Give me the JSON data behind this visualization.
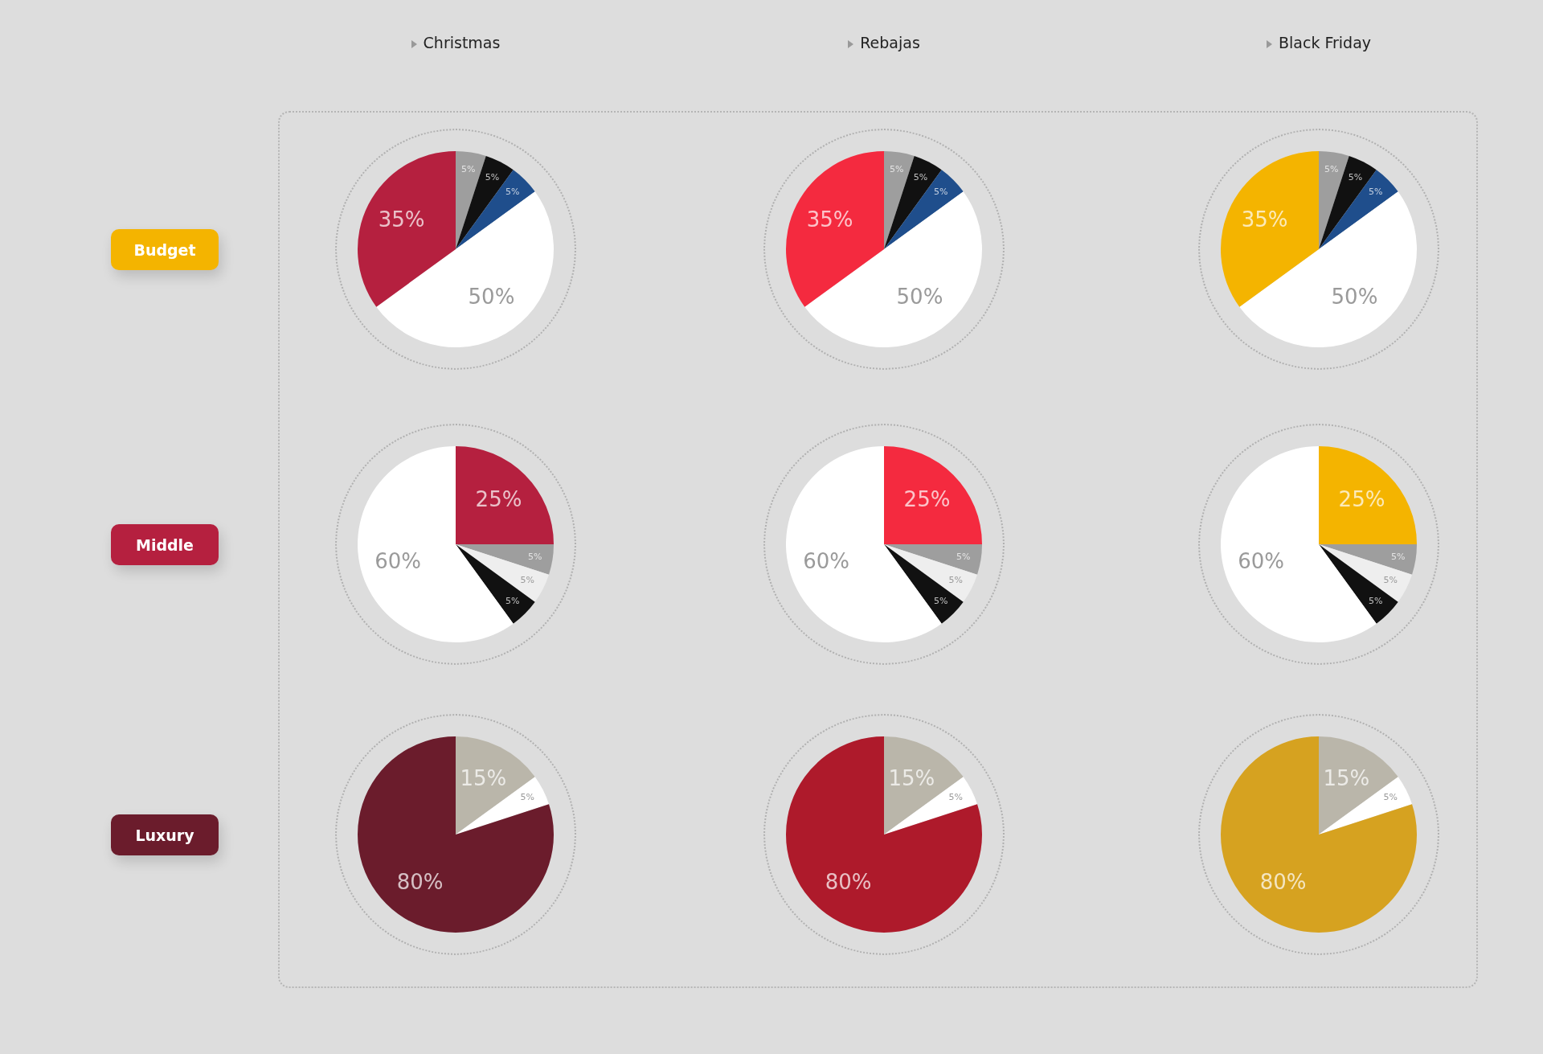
{
  "chart_data": [
    {
      "type": "pie",
      "title": "Christmas",
      "ylabel": "Budget",
      "categories": [
        null,
        null,
        null,
        null,
        null
      ],
      "values": [
        5,
        5,
        5,
        50,
        35
      ],
      "colors": [
        "#9e9e9e",
        "#111111",
        "#1f4e8c",
        "#ffffff",
        "#b5203f"
      ],
      "value_labels": [
        "5%",
        "5%",
        "5%",
        "50%",
        "35%"
      ]
    },
    {
      "type": "pie",
      "title": "Rebajas",
      "categories": [
        null,
        null,
        null,
        null,
        null
      ],
      "values": [
        5,
        5,
        5,
        50,
        35
      ],
      "colors": [
        "#9e9e9e",
        "#111111",
        "#1f4e8c",
        "#ffffff",
        "#f42a3f"
      ],
      "value_labels": [
        "5%",
        "5%",
        "5%",
        "50%",
        "35%"
      ]
    },
    {
      "type": "pie",
      "title": "Black Friday",
      "categories": [
        null,
        null,
        null,
        null,
        null
      ],
      "values": [
        5,
        5,
        5,
        50,
        35
      ],
      "colors": [
        "#9e9e9e",
        "#111111",
        "#1f4e8c",
        "#ffffff",
        "#f4b400"
      ],
      "value_labels": [
        "5%",
        "5%",
        "5%",
        "50%",
        "35%"
      ]
    },
    {
      "type": "pie",
      "ylabel": "Middle",
      "categories": [
        null,
        null,
        null,
        null,
        null
      ],
      "values": [
        25,
        5,
        5,
        5,
        60
      ],
      "colors": [
        "#b5203f",
        "#9e9e9e",
        "#eeeeee",
        "#111111",
        "#ffffff"
      ],
      "value_labels": [
        "25%",
        "5%",
        "5%",
        "5%",
        "60%"
      ]
    },
    {
      "type": "pie",
      "categories": [
        null,
        null,
        null,
        null,
        null
      ],
      "values": [
        25,
        5,
        5,
        5,
        60
      ],
      "colors": [
        "#f42a3f",
        "#9e9e9e",
        "#eeeeee",
        "#111111",
        "#ffffff"
      ],
      "value_labels": [
        "25%",
        "5%",
        "5%",
        "5%",
        "60%"
      ]
    },
    {
      "type": "pie",
      "categories": [
        null,
        null,
        null,
        null,
        null
      ],
      "values": [
        25,
        5,
        5,
        5,
        60
      ],
      "colors": [
        "#f4b400",
        "#9e9e9e",
        "#eeeeee",
        "#111111",
        "#ffffff"
      ],
      "value_labels": [
        "25%",
        "5%",
        "5%",
        "5%",
        "60%"
      ]
    },
    {
      "type": "pie",
      "ylabel": "Luxury",
      "categories": [
        null,
        null,
        null
      ],
      "values": [
        15,
        5,
        80
      ],
      "colors": [
        "#bab6aa",
        "#ffffff",
        "#6b1c2c"
      ],
      "value_labels": [
        "15%",
        "5%",
        "80%"
      ]
    },
    {
      "type": "pie",
      "categories": [
        null,
        null,
        null
      ],
      "values": [
        15,
        5,
        80
      ],
      "colors": [
        "#bab6aa",
        "#ffffff",
        "#ae1a2b"
      ],
      "value_labels": [
        "15%",
        "5%",
        "80%"
      ]
    },
    {
      "type": "pie",
      "categories": [
        null,
        null,
        null
      ],
      "values": [
        15,
        5,
        80
      ],
      "colors": [
        "#bab6aa",
        "#ffffff",
        "#d6a220"
      ],
      "value_labels": [
        "15%",
        "5%",
        "80%"
      ]
    }
  ]
}
